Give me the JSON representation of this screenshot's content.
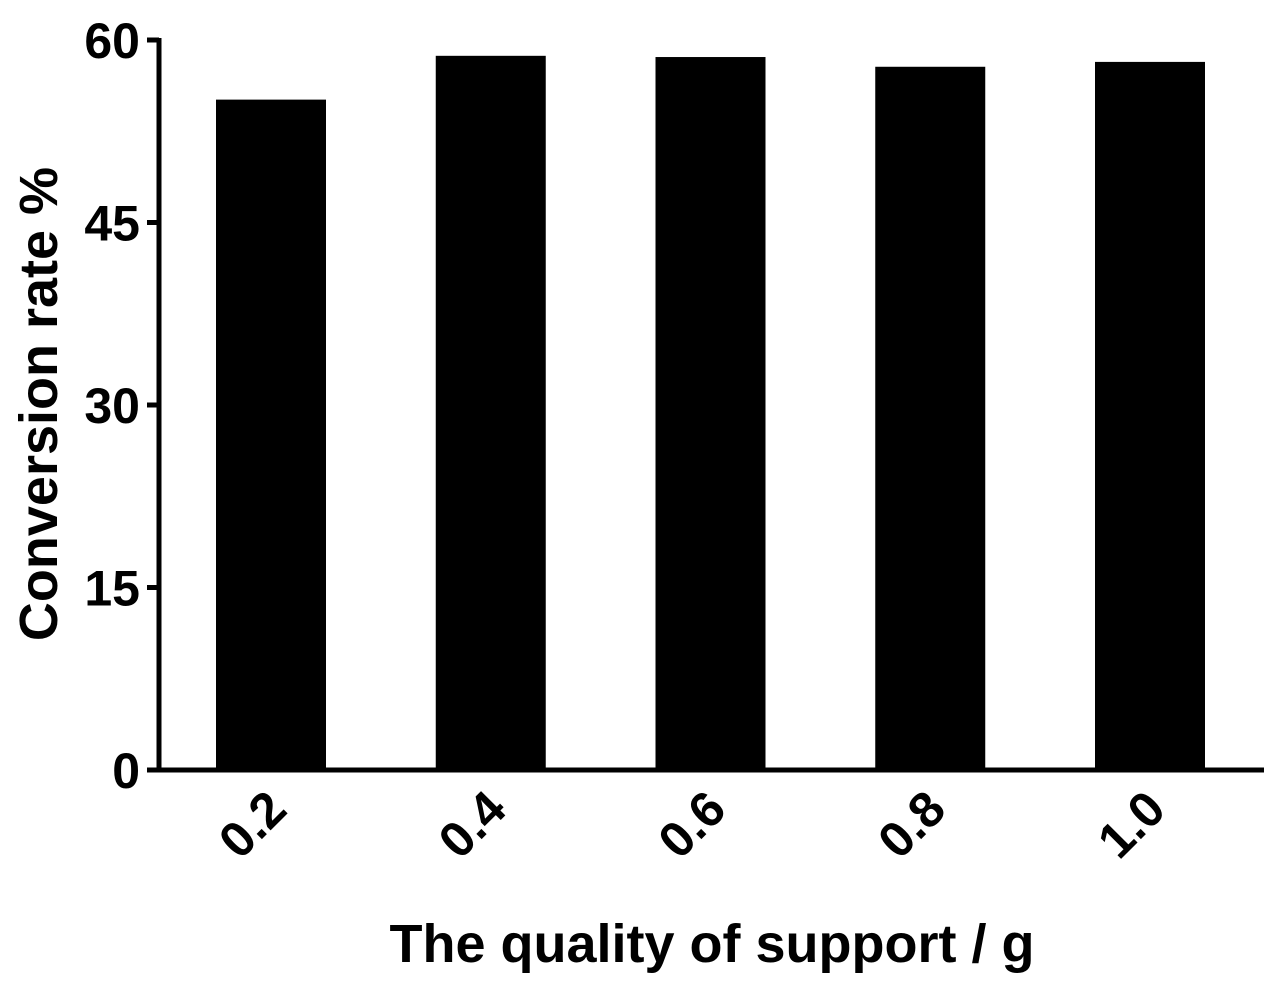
{
  "chart_data": {
    "type": "bar",
    "categories": [
      "0.2",
      "0.4",
      "0.6",
      "0.8",
      "1.0"
    ],
    "values": [
      55.1,
      58.7,
      58.6,
      57.8,
      58.2
    ],
    "xlabel": "The quality of support / g",
    "ylabel": "Conversion rate %",
    "ylim": [
      0,
      60
    ],
    "yticks": [
      0,
      15,
      30,
      45,
      60
    ],
    "grid": false,
    "bar_color": "#000000"
  }
}
